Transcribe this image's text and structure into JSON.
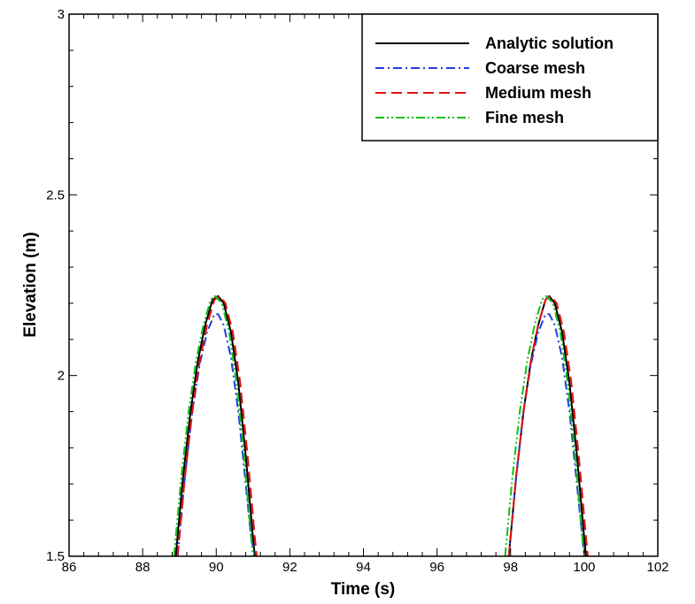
{
  "chart_data": {
    "type": "line",
    "xlabel": "Time (s)",
    "ylabel": "Elevation (m)",
    "xlim": [
      86,
      102
    ],
    "ylim": [
      1.5,
      3
    ],
    "x_ticks": [
      86,
      88,
      90,
      92,
      94,
      96,
      98,
      100,
      102
    ],
    "x_tick_labels": [
      "86",
      "88",
      "90",
      "92",
      "94",
      "96",
      "98",
      "100",
      "102"
    ],
    "y_ticks": [
      1.5,
      2,
      2.5,
      3
    ],
    "y_tick_labels": [
      "1.5",
      "2",
      "2.5",
      "3"
    ],
    "grid": false,
    "legend_position": "top-right",
    "series": [
      {
        "name": "Analytic solution",
        "color": "#000000",
        "dash": "solid",
        "segments": [
          {
            "x": [
              88.9,
              89.1,
              89.3,
              89.5,
              89.7,
              89.9,
              90.05,
              90.2,
              90.4,
              90.6,
              90.8,
              91.0,
              91.05
            ],
            "y": [
              1.5,
              1.72,
              1.9,
              2.04,
              2.14,
              2.21,
              2.22,
              2.2,
              2.12,
              1.98,
              1.78,
              1.55,
              1.5
            ]
          },
          {
            "x": [
              97.95,
              98.15,
              98.35,
              98.55,
              98.75,
              98.95,
              99.05,
              99.2,
              99.4,
              99.6,
              99.8,
              100.0,
              100.05
            ],
            "y": [
              1.5,
              1.72,
              1.9,
              2.04,
              2.14,
              2.21,
              2.22,
              2.2,
              2.12,
              1.98,
              1.78,
              1.55,
              1.5
            ]
          }
        ]
      },
      {
        "name": "Coarse mesh",
        "color": "#1f3fe0",
        "dash": "dashdot",
        "segments": [
          {
            "x": [
              88.95,
              89.15,
              89.35,
              89.55,
              89.75,
              89.95,
              90.05,
              90.2,
              90.4,
              90.6,
              90.8,
              90.95,
              91.05
            ],
            "y": [
              1.5,
              1.72,
              1.9,
              2.03,
              2.12,
              2.17,
              2.17,
              2.14,
              2.05,
              1.9,
              1.7,
              1.55,
              1.5
            ]
          },
          {
            "x": [
              97.95,
              98.15,
              98.35,
              98.55,
              98.75,
              98.95,
              99.05,
              99.2,
              99.4,
              99.6,
              99.8,
              99.95,
              100.0
            ],
            "y": [
              1.5,
              1.72,
              1.9,
              2.03,
              2.12,
              2.17,
              2.17,
              2.14,
              2.05,
              1.9,
              1.7,
              1.55,
              1.5
            ]
          }
        ]
      },
      {
        "name": "Medium mesh",
        "color": "#e01010",
        "dash": "dashed",
        "segments": [
          {
            "x": [
              88.95,
              89.15,
              89.35,
              89.55,
              89.75,
              89.95,
              90.1,
              90.25,
              90.45,
              90.65,
              90.85,
              91.05,
              91.1
            ],
            "y": [
              1.5,
              1.72,
              1.9,
              2.04,
              2.14,
              2.21,
              2.22,
              2.2,
              2.12,
              1.98,
              1.78,
              1.55,
              1.5
            ]
          },
          {
            "x": [
              97.95,
              98.15,
              98.35,
              98.55,
              98.75,
              98.95,
              99.1,
              99.25,
              99.45,
              99.65,
              99.85,
              100.05,
              100.1
            ],
            "y": [
              1.5,
              1.72,
              1.9,
              2.04,
              2.14,
              2.21,
              2.22,
              2.2,
              2.12,
              1.98,
              1.78,
              1.55,
              1.5
            ]
          }
        ]
      },
      {
        "name": "Fine mesh",
        "color": "#10c010",
        "dash": "dashdotdot",
        "segments": [
          {
            "x": [
              88.85,
              89.05,
              89.25,
              89.45,
              89.65,
              89.85,
              89.97,
              90.15,
              90.35,
              90.55,
              90.75,
              90.95,
              91.0
            ],
            "y": [
              1.5,
              1.72,
              1.9,
              2.04,
              2.14,
              2.21,
              2.22,
              2.2,
              2.12,
              1.98,
              1.78,
              1.55,
              1.5
            ]
          },
          {
            "x": [
              97.85,
              98.05,
              98.25,
              98.45,
              98.65,
              98.85,
              98.97,
              99.15,
              99.35,
              99.55,
              99.75,
              99.95,
              100.0
            ],
            "y": [
              1.5,
              1.72,
              1.9,
              2.04,
              2.14,
              2.21,
              2.22,
              2.2,
              2.12,
              1.98,
              1.78,
              1.55,
              1.5
            ]
          }
        ]
      }
    ]
  }
}
